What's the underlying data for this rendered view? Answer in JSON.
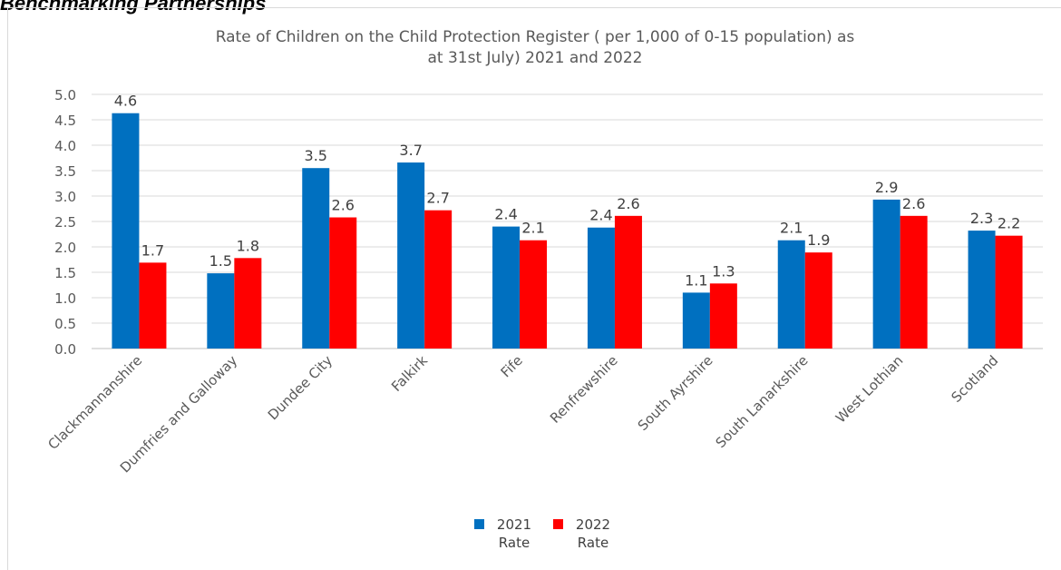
{
  "page": {
    "heading": "Benchmarking Partnerships"
  },
  "chart_data": {
    "type": "bar",
    "title_line1": "Rate of Children on the Child Protection Register ( per 1,000 of 0-15 population) as",
    "title_line2": "at 31st July) 2021 and 2022",
    "categories": [
      "Clackmannanshire",
      "Dumfries and Galloway",
      "Dundee City",
      "Falkirk",
      "Fife",
      "Renfrewshire",
      "South Ayrshire",
      "South Lanarkshire",
      "West Lothian",
      "Scotland"
    ],
    "series": [
      {
        "name_line1": "2021",
        "name_line2": "Rate",
        "color": "#0070c0",
        "values": [
          4.63,
          1.48,
          3.55,
          3.66,
          2.4,
          2.38,
          1.1,
          2.13,
          2.93,
          2.32
        ],
        "labels": [
          "4.6",
          "1.5",
          "3.5",
          "3.7",
          "2.4",
          "2.4",
          "1.1",
          "2.1",
          "2.9",
          "2.3"
        ]
      },
      {
        "name_line1": "2022",
        "name_line2": "Rate",
        "color": "#ff0000",
        "values": [
          1.69,
          1.78,
          2.58,
          2.72,
          2.13,
          2.61,
          1.28,
          1.89,
          2.61,
          2.22
        ],
        "labels": [
          "1.7",
          "1.8",
          "2.6",
          "2.7",
          "2.1",
          "2.6",
          "1.3",
          "1.9",
          "2.6",
          "2.2"
        ]
      }
    ],
    "yticks": [
      "0.0",
      "0.5",
      "1.0",
      "1.5",
      "2.0",
      "2.5",
      "3.0",
      "3.5",
      "4.0",
      "4.5",
      "5.0"
    ],
    "ylim": [
      0,
      5
    ],
    "grid": true,
    "legend_position": "bottom"
  }
}
